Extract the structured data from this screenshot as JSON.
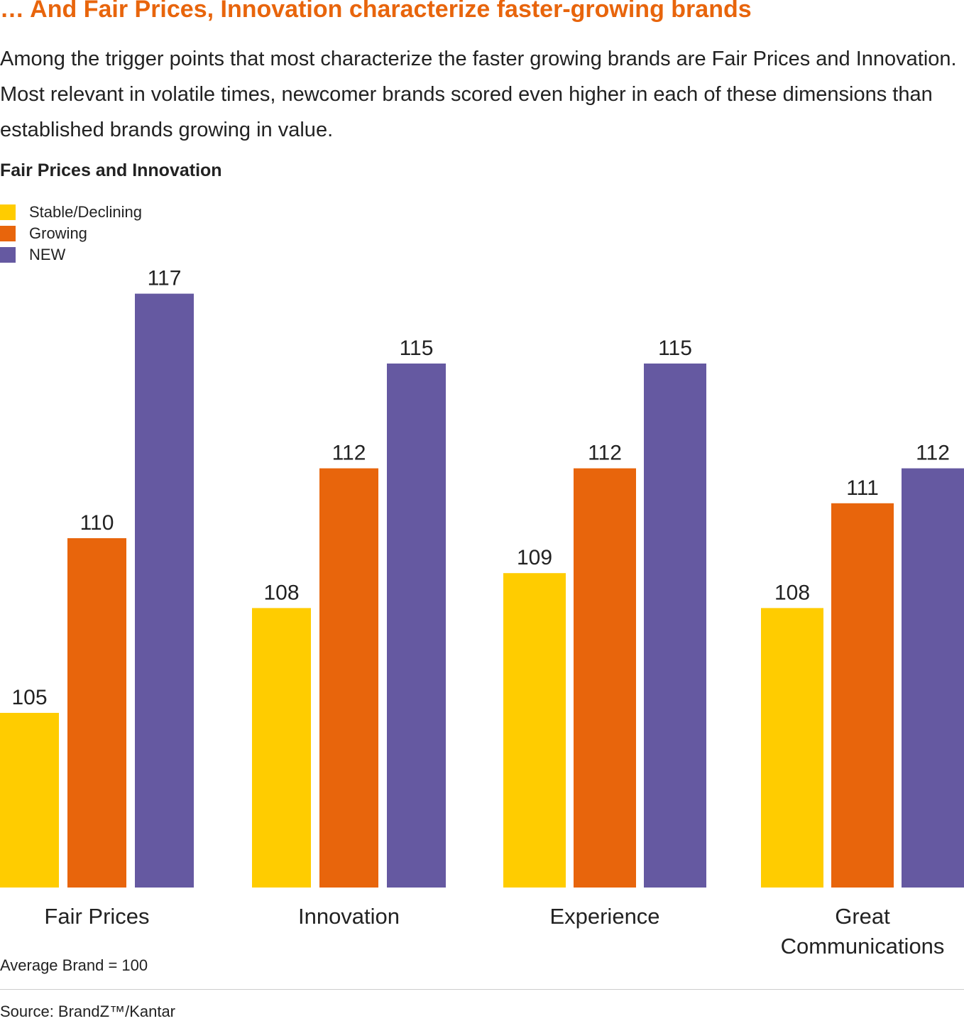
{
  "title": "… And Fair Prices, Innovation characterize faster-growing brands",
  "intro": "Among the trigger points that most characterize the faster growing brands are Fair Prices and Innovation. Most relevant in volatile times, newcomer brands scored even higher in each of these dimensions than established brands growing in value.",
  "footnote": "Average Brand = 100",
  "source": "Source: BrandZ™/Kantar",
  "chart_data": {
    "type": "bar",
    "title": "Fair Prices and Innovation",
    "categories": [
      "Fair Prices",
      "Innovation",
      "Experience",
      "Great Communications"
    ],
    "series": [
      {
        "name": "Stable/Declining",
        "color": "#FFCC00",
        "values": [
          105,
          108,
          109,
          108
        ]
      },
      {
        "name": "Growing",
        "color": "#E8650C",
        "values": [
          110,
          112,
          112,
          111
        ]
      },
      {
        "name": "NEW",
        "color": "#6559A1",
        "values": [
          117,
          115,
          115,
          112
        ]
      }
    ],
    "ylim": [
      100,
      117
    ],
    "grid": false,
    "legend": "top-left"
  }
}
